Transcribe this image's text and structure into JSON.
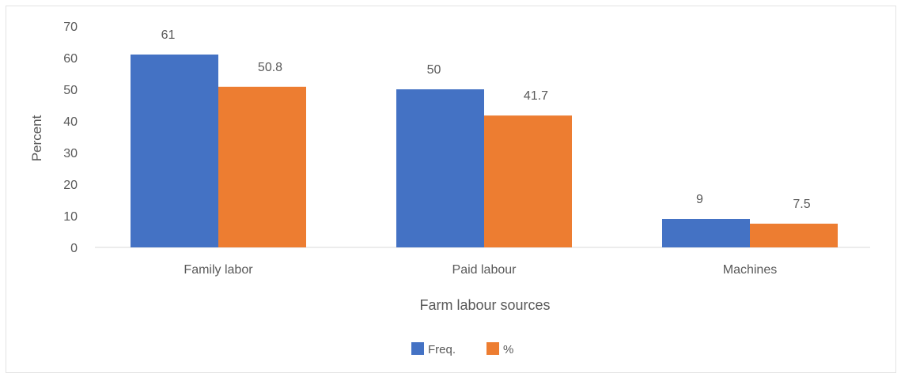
{
  "chart_data": {
    "type": "bar",
    "title": "",
    "xlabel": "Farm labour sources",
    "ylabel": "Percent",
    "categories": [
      "Family labor",
      "Paid labour",
      "Machines"
    ],
    "series": [
      {
        "name": "Freq.",
        "color": "#4472C4",
        "values": [
          61,
          50,
          9
        ],
        "labels": [
          "61",
          "50",
          "9"
        ]
      },
      {
        "name": "%",
        "color": "#ED7D31",
        "values": [
          50.8,
          41.7,
          7.5
        ],
        "labels": [
          "50.8",
          "41.7",
          "7.5"
        ]
      }
    ],
    "ylim": [
      0,
      70
    ],
    "yticks": [
      0,
      10,
      20,
      30,
      40,
      50,
      60,
      70
    ],
    "ytick_labels": [
      "0",
      "10",
      "20",
      "30",
      "40",
      "50",
      "60",
      "70"
    ],
    "grid": false,
    "legend": "bottom"
  }
}
